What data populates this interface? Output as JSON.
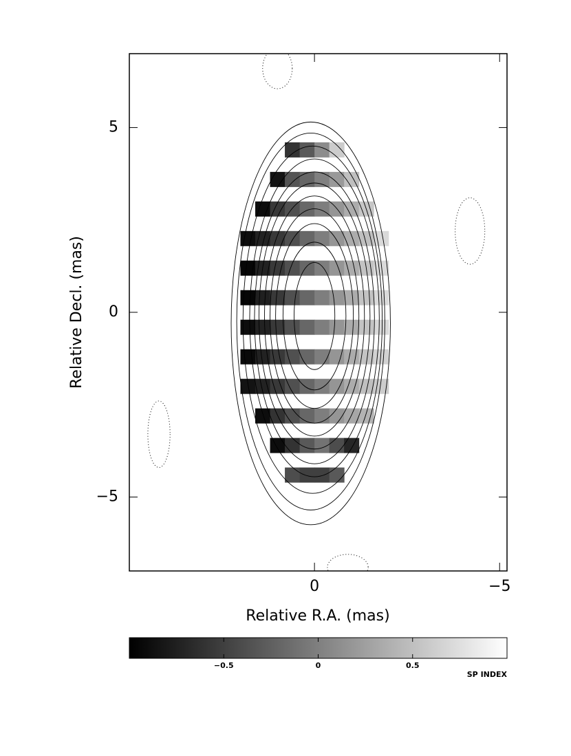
{
  "chart_data": {
    "type": "image",
    "xlabel": "Relative R.A. (mas)",
    "ylabel": "Relative Decl. (mas)",
    "xlim": [
      5,
      -5.2
    ],
    "ylim": [
      -7,
      7
    ],
    "xticks": [
      {
        "value": 0,
        "label": "0"
      },
      {
        "value": -5,
        "label": "−5"
      }
    ],
    "yticks": [
      {
        "value": 5,
        "label": "5"
      },
      {
        "value": 0,
        "label": "0"
      },
      {
        "value": -5,
        "label": "−5"
      }
    ],
    "image": {
      "pixel_size": 0.4,
      "x": [
        1.8,
        1.4,
        1.0,
        0.6,
        0.2,
        -0.2,
        -0.6,
        -1.0,
        -1.4,
        -1.8
      ],
      "y": [
        4.4,
        3.6,
        2.8,
        2.0,
        1.2,
        0.4,
        -0.4,
        -1.2,
        -2.0,
        -2.8,
        -3.6,
        -4.4
      ],
      "values": [
        [
          null,
          null,
          null,
          -0.6,
          -0.3,
          0.1,
          0.6,
          null,
          null,
          null
        ],
        [
          null,
          null,
          -0.85,
          -0.35,
          -0.2,
          0.0,
          0.2,
          0.5,
          null,
          null
        ],
        [
          null,
          -0.9,
          -0.55,
          -0.37,
          -0.19,
          -0.01,
          0.17,
          0.35,
          0.55,
          null
        ],
        [
          -0.9,
          -0.73,
          -0.55,
          -0.37,
          -0.19,
          -0.01,
          0.17,
          0.35,
          0.5,
          0.7
        ],
        [
          -0.95,
          -0.73,
          -0.55,
          -0.37,
          -0.19,
          -0.01,
          0.17,
          0.35,
          0.53,
          0.71
        ],
        [
          -0.95,
          -0.75,
          -0.55,
          -0.37,
          -0.19,
          -0.01,
          0.17,
          0.35,
          0.53,
          0.71
        ],
        [
          -0.9,
          -0.73,
          -0.55,
          -0.37,
          -0.19,
          -0.01,
          0.17,
          0.35,
          0.53,
          0.7
        ],
        [
          -0.92,
          -0.73,
          -0.55,
          -0.37,
          -0.19,
          -0.01,
          0.17,
          0.35,
          0.53,
          0.65
        ],
        [
          -0.85,
          -0.73,
          -0.55,
          -0.37,
          -0.19,
          -0.01,
          0.17,
          0.35,
          0.5,
          0.6
        ],
        [
          null,
          -0.9,
          -0.6,
          -0.37,
          -0.19,
          -0.01,
          0.17,
          0.3,
          0.4,
          null
        ],
        [
          null,
          null,
          -0.9,
          -0.6,
          -0.3,
          -0.1,
          -0.4,
          -0.7,
          null,
          null
        ],
        [
          null,
          null,
          null,
          -0.4,
          -0.5,
          -0.5,
          -0.3,
          null,
          null,
          null
        ]
      ]
    },
    "contours": [
      {
        "cx": 0,
        "cy": -0.1,
        "a": 0.55,
        "b": 1.45
      },
      {
        "cx": 0,
        "cy": -0.1,
        "a": 0.85,
        "b": 2.0
      },
      {
        "cx": 0,
        "cy": -0.1,
        "a": 1.05,
        "b": 2.5
      },
      {
        "cx": 0,
        "cy": -0.1,
        "a": 1.2,
        "b": 2.9
      },
      {
        "cx": 0,
        "cy": -0.1,
        "a": 1.35,
        "b": 3.25
      },
      {
        "cx": 0,
        "cy": -0.1,
        "a": 1.5,
        "b": 3.6
      },
      {
        "cx": 0,
        "cy": -0.15,
        "a": 1.62,
        "b": 3.95
      },
      {
        "cx": 0,
        "cy": -0.15,
        "a": 1.75,
        "b": 4.3
      },
      {
        "cx": 0.05,
        "cy": -0.2,
        "a": 1.88,
        "b": 4.7
      },
      {
        "cx": 0.1,
        "cy": -0.25,
        "a": 2.0,
        "b": 5.1
      },
      {
        "cx": 0.1,
        "cy": -0.3,
        "a": 2.15,
        "b": 5.45
      }
    ],
    "negative_contours": [
      {
        "cx": 1.0,
        "cy": 6.6,
        "a": 0.4,
        "b": 0.55
      },
      {
        "cx": -4.2,
        "cy": 2.2,
        "a": 0.4,
        "b": 0.9
      },
      {
        "cx": 4.2,
        "cy": -3.3,
        "a": 0.3,
        "b": 0.9
      },
      {
        "cx": -0.9,
        "cy": -6.9,
        "a": 0.55,
        "b": 0.35
      }
    ],
    "colorbar": {
      "label": "SP INDEX",
      "range": [
        -1,
        1
      ],
      "ticks": [
        {
          "value": -0.5,
          "label": "−0.5"
        },
        {
          "value": 0,
          "label": "0"
        },
        {
          "value": 0.5,
          "label": "0.5"
        }
      ]
    }
  }
}
